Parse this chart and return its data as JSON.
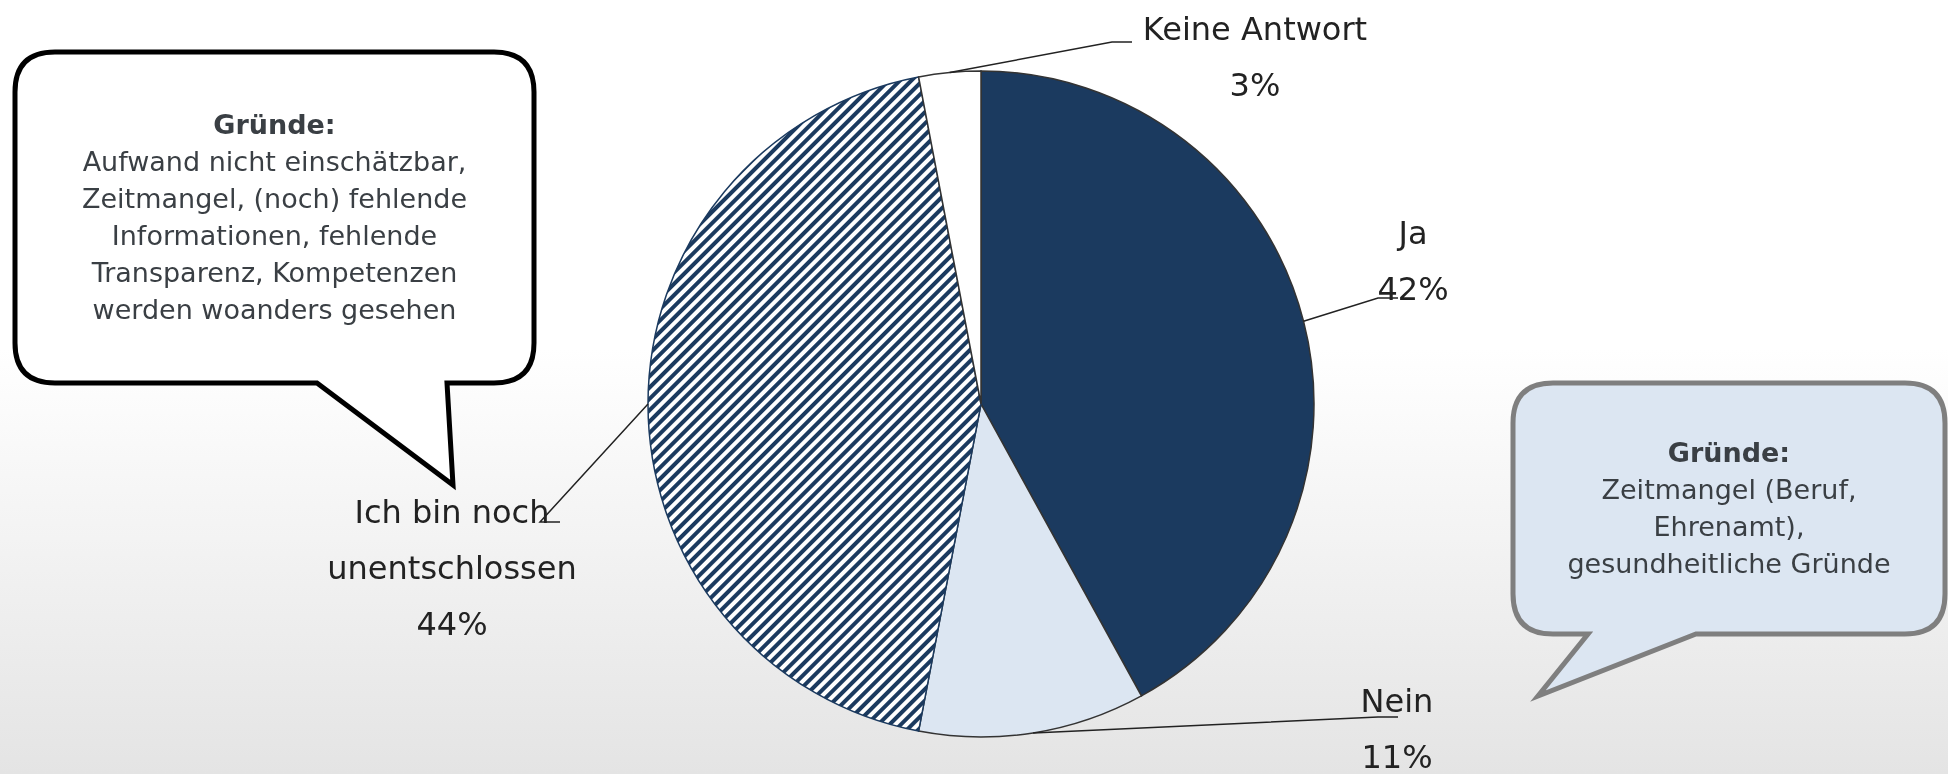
{
  "chart_data": {
    "type": "pie",
    "categories": [
      "Ja",
      "Nein",
      "Ich bin noch unentschlossen",
      "Keine Antwort"
    ],
    "values": [
      42,
      11,
      44,
      3
    ],
    "colors": [
      "#1b3a5f",
      "#dce6f2",
      "#1b3a5f",
      "#ffffff"
    ],
    "value_labels": [
      "42%",
      "11%",
      "44%",
      "3%"
    ],
    "annotations": [
      "Gründe:\nAufwand nicht einschätzbar,\nZeitmangel, (noch) fehlende\nInformationen, fehlende\nTransparenz, Kompetenzen\nwerden woanders gesehen",
      "Gründe:\nZeitmangel (Beruf,\nEhrenamt),\ngesundheitliche Gründe"
    ]
  }
}
